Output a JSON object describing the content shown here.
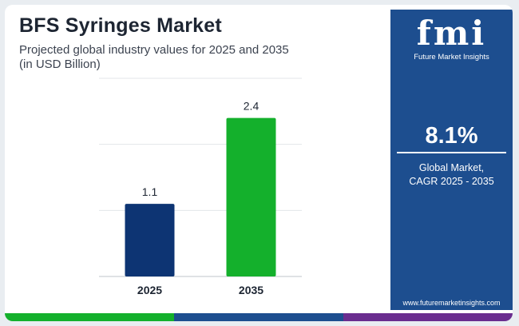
{
  "header": {
    "title": "BFS Syringes Market",
    "subtitle": "Projected global industry values for 2025 and 2035",
    "unit": "(in USD Billion)"
  },
  "chart_data": {
    "type": "bar",
    "categories": [
      "2025",
      "2035"
    ],
    "values": [
      1.1,
      2.4
    ],
    "data_labels": [
      "1.1",
      "2.4"
    ],
    "bar_colors": [
      "#0d3473",
      "#14b02c"
    ],
    "ylim": [
      0,
      3
    ],
    "grid": true,
    "legend": "none"
  },
  "sidebar": {
    "logo_mark": "fmi",
    "logo_text": "Future Market Insights",
    "cagr_value": "8.1%",
    "cagr_label_line1": "Global Market,",
    "cagr_label_line2": "CAGR 2025 - 2035",
    "website": "www.futuremarketinsights.com"
  },
  "colors": {
    "panel": "#1d4e8f",
    "strip": [
      "#14b02c",
      "#1d4e8f",
      "#6a2d8f"
    ]
  }
}
